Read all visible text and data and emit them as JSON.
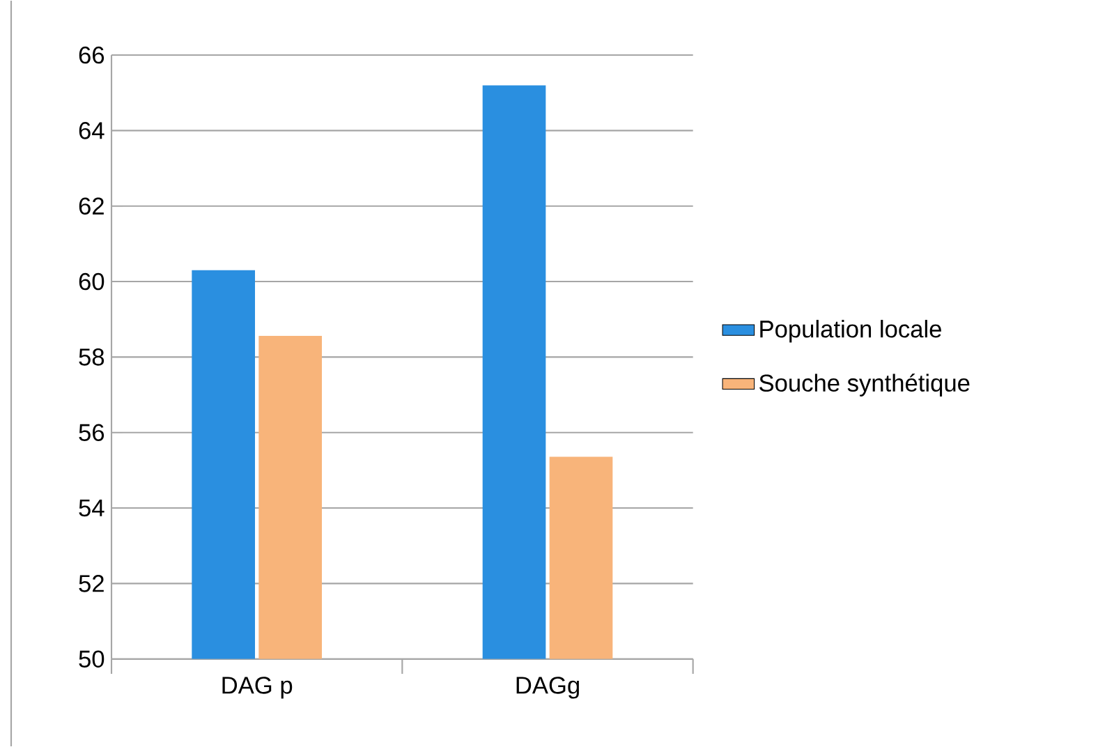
{
  "chart_data": {
    "type": "bar",
    "categories": [
      "DAG p",
      "DAGg"
    ],
    "series": [
      {
        "name": "Population locale",
        "color": "#2a8fe0",
        "values": [
          60.3,
          65.2
        ]
      },
      {
        "name": "Souche synthétique",
        "color": "#f8b47a",
        "values": [
          58.56,
          55.36
        ]
      }
    ],
    "ylim": [
      50,
      66
    ],
    "yticks": [
      50,
      52,
      54,
      56,
      58,
      60,
      62,
      64,
      66
    ],
    "grid": "y",
    "legend": "right"
  }
}
